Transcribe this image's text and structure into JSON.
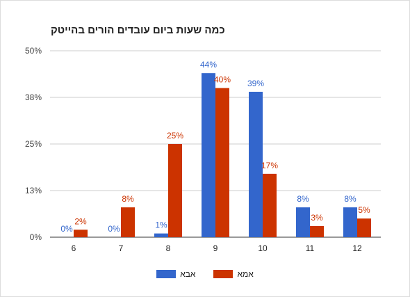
{
  "chart_data": {
    "type": "bar",
    "title": "כמה שעות ביום עובדים הורים בהייטק",
    "categories": [
      "6",
      "7",
      "8",
      "9",
      "10",
      "11",
      "12"
    ],
    "series": [
      {
        "name": "אבא",
        "color": "#3366cc",
        "values": [
          0,
          0,
          1,
          44,
          39,
          8,
          8
        ],
        "labels": [
          "0%",
          "0%",
          "1%",
          "44%",
          "39%",
          "8%",
          "8%"
        ]
      },
      {
        "name": "אמא",
        "color": "#cc3300",
        "values": [
          2,
          8,
          25,
          40,
          17,
          3,
          5
        ],
        "labels": [
          "2%",
          "8%",
          "25%",
          "40%",
          "17%",
          "3%",
          "5%"
        ]
      }
    ],
    "yticks": [
      0,
      12.5,
      25,
      37.5,
      50
    ],
    "ytick_labels": [
      "0%",
      "13%",
      "25%",
      "38%",
      "50%"
    ],
    "ylim": [
      0,
      50
    ],
    "grid": true,
    "legend_position": "bottom"
  }
}
